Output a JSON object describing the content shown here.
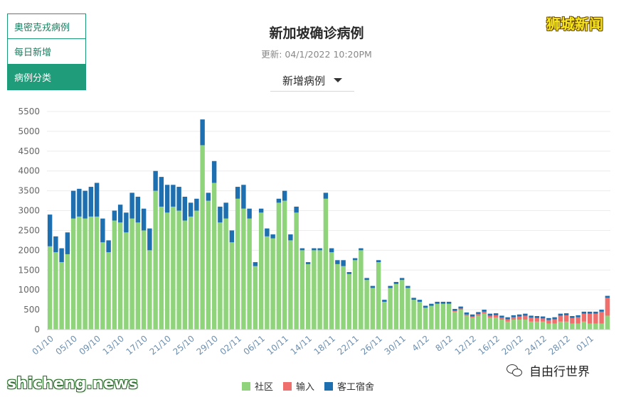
{
  "tabs": [
    {
      "label": "奥密克戎病例",
      "active": false
    },
    {
      "label": "每日新增",
      "active": false
    },
    {
      "label": "病例分类",
      "active": true
    }
  ],
  "title": "新加坡确诊病例",
  "updated": "更新: 04/1/2022 10:20PM",
  "selector": {
    "label": "新增病例"
  },
  "logo": "狮城新闻",
  "watermark": "shicheng.news",
  "wechat": {
    "label": "自由行世界"
  },
  "colors": {
    "community": "#8fd47a",
    "imported": "#ef6f6c",
    "dormitory": "#1e6fb0",
    "accent": "#1f9c7a"
  },
  "chart_data": {
    "type": "bar",
    "stacked": true,
    "ylim": [
      0,
      5500
    ],
    "yticks": [
      0,
      500,
      1000,
      1500,
      2000,
      2500,
      3000,
      3500,
      4000,
      4500,
      5000,
      5500
    ],
    "x_tick_labels": [
      "01/10",
      "05/10",
      "09/10",
      "13/10",
      "17/10",
      "21/10",
      "25/10",
      "29/10",
      "02/11",
      "06/11",
      "10/11",
      "14/11",
      "18/11",
      "22/11",
      "26/11",
      "30/11",
      "4/12",
      "8/12",
      "12/12",
      "16/12",
      "20/12",
      "24/12",
      "28/12",
      "01/1"
    ],
    "grid": true,
    "legend_position": "bottom",
    "series": [
      {
        "name": "社区",
        "color": "#8fd47a",
        "values": [
          2100,
          1950,
          1700,
          1900,
          2800,
          2850,
          2800,
          2850,
          2850,
          2200,
          1950,
          2750,
          2700,
          2450,
          2800,
          2700,
          2500,
          2000,
          3500,
          3100,
          2950,
          3100,
          3000,
          2750,
          2850,
          3000,
          4650,
          3250,
          3700,
          2700,
          2800,
          2200,
          3300,
          3050,
          2800,
          1600,
          2950,
          2350,
          2300,
          3200,
          3250,
          2250,
          2950,
          2000,
          1650,
          2000,
          2000,
          3300,
          1950,
          1650,
          1600,
          1400,
          1750,
          2000,
          1250,
          1050,
          1700,
          700,
          1050,
          1150,
          1250,
          1050,
          750,
          700,
          550,
          600,
          650,
          650,
          650,
          450,
          500,
          350,
          300,
          350,
          400,
          300,
          300,
          250,
          200,
          250,
          250,
          250,
          200,
          200,
          200,
          150,
          150,
          200,
          200,
          150,
          150,
          200,
          150,
          150,
          150,
          350
        ],
        "mark_colors": []
      },
      {
        "name": "输入",
        "color": "#ef6f6c",
        "values": [
          0,
          0,
          0,
          0,
          0,
          0,
          0,
          0,
          0,
          0,
          0,
          0,
          0,
          0,
          0,
          0,
          0,
          0,
          0,
          0,
          0,
          0,
          0,
          0,
          0,
          0,
          0,
          0,
          0,
          0,
          0,
          0,
          0,
          0,
          0,
          0,
          0,
          0,
          0,
          0,
          0,
          0,
          0,
          0,
          0,
          0,
          0,
          0,
          0,
          0,
          0,
          0,
          0,
          0,
          0,
          0,
          0,
          0,
          0,
          0,
          0,
          0,
          0,
          0,
          0,
          0,
          0,
          0,
          0,
          20,
          30,
          30,
          30,
          40,
          50,
          50,
          60,
          50,
          60,
          60,
          80,
          100,
          100,
          90,
          80,
          90,
          110,
          150,
          160,
          140,
          160,
          200,
          250,
          250,
          300,
          450
        ]
      },
      {
        "name": "客工宿舍",
        "color": "#1e6fb0",
        "values": [
          800,
          400,
          350,
          550,
          700,
          700,
          700,
          750,
          850,
          600,
          300,
          250,
          450,
          500,
          650,
          650,
          550,
          550,
          500,
          750,
          700,
          550,
          600,
          600,
          350,
          300,
          650,
          200,
          550,
          400,
          400,
          300,
          300,
          600,
          250,
          100,
          100,
          200,
          100,
          100,
          250,
          150,
          150,
          50,
          50,
          50,
          50,
          150,
          100,
          100,
          150,
          50,
          50,
          50,
          50,
          50,
          50,
          50,
          50,
          50,
          50,
          50,
          50,
          50,
          50,
          50,
          50,
          50,
          50,
          50,
          50,
          50,
          50,
          50,
          50,
          50,
          50,
          50,
          50,
          50,
          50,
          50,
          50,
          50,
          50,
          50,
          50,
          50,
          50,
          50,
          50,
          50,
          50,
          50,
          50,
          50
        ]
      }
    ]
  }
}
